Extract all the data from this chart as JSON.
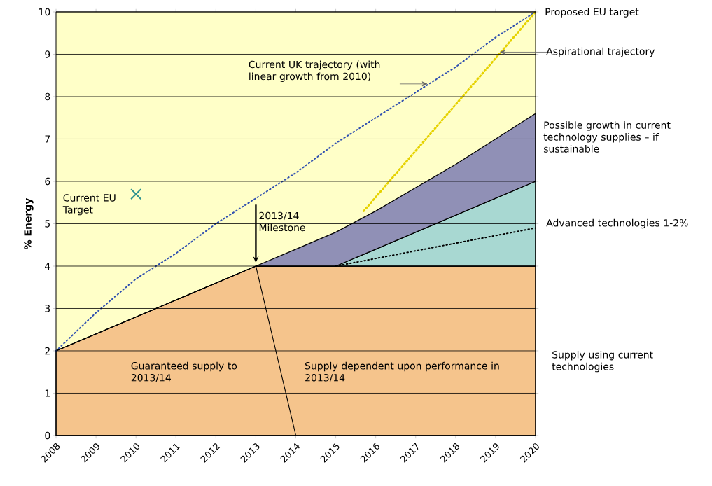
{
  "chart_data": {
    "type": "area",
    "ylabel": "% Energy",
    "stacked": true,
    "grid": "y",
    "x": [
      2008,
      2013,
      2014,
      2015,
      2016,
      2017,
      2018,
      2019,
      2020
    ],
    "legend": "right",
    "xlim": [
      2008,
      2020
    ],
    "ylim": [
      0,
      10
    ],
    "xticks": [
      2008,
      2009,
      2010,
      2011,
      2012,
      2013,
      2014,
      2015,
      2016,
      2017,
      2018,
      2019,
      2020
    ],
    "yticks": [
      0,
      1,
      2,
      3,
      4,
      5,
      6,
      7,
      8,
      9,
      10
    ],
    "series": [
      {
        "name": "Supply using current technologies",
        "color": "#f5c48c",
        "values": [
          2,
          4,
          4,
          4,
          4,
          4,
          4,
          4,
          4
        ]
      },
      {
        "name": "Advanced technologies 1-2%",
        "color": "#a8d8d2",
        "values": [
          0,
          0,
          0,
          0,
          0.4,
          0.8,
          1.2,
          1.6,
          2.0
        ]
      },
      {
        "name": "Possible growth in current technology supplies – if sustainable",
        "color": "#9090b6",
        "values": [
          0,
          0,
          0.4,
          0.8,
          0.9,
          1.05,
          1.2,
          1.4,
          1.6
        ]
      },
      {
        "name": "Current UK trajectory (with linear growth from 2010)",
        "type": "line",
        "line_style": "dotted",
        "color": "#3050b0",
        "x": [
          2008,
          2009,
          2010,
          2011,
          2012,
          2013,
          2014,
          2015,
          2016,
          2017,
          2018,
          2019,
          2020
        ],
        "values": [
          2.0,
          2.9,
          3.7,
          4.3,
          5.0,
          5.6,
          6.2,
          6.9,
          7.5,
          8.1,
          8.7,
          9.4,
          10
        ]
      },
      {
        "name": "Aspirational trajectory",
        "type": "line",
        "line_style": "dotted",
        "color": "#e6d200",
        "x": [
          2015.7,
          2020
        ],
        "values": [
          5.3,
          10
        ]
      },
      {
        "type": "line",
        "line_style": "solid",
        "color": "#000000",
        "x": [
          2013,
          2014
        ],
        "values": [
          4,
          0
        ]
      },
      {
        "type": "line",
        "line_style": "dotted",
        "color": "#000000",
        "x": [
          2015,
          2020
        ],
        "values": [
          4.0,
          4.9
        ]
      },
      {
        "name": "Current EU Target",
        "type": "scatter",
        "marker": "cross",
        "color": "#2a9090",
        "x": [
          2010
        ],
        "values": [
          5.7
        ]
      }
    ],
    "annotations": [
      {
        "text": "Proposed EU target",
        "x": 2020,
        "y": 10
      },
      "2013/14 Milestone",
      "Guaranteed supply to 2013/14",
      "Supply dependent upon performance in 2013/14"
    ]
  }
}
